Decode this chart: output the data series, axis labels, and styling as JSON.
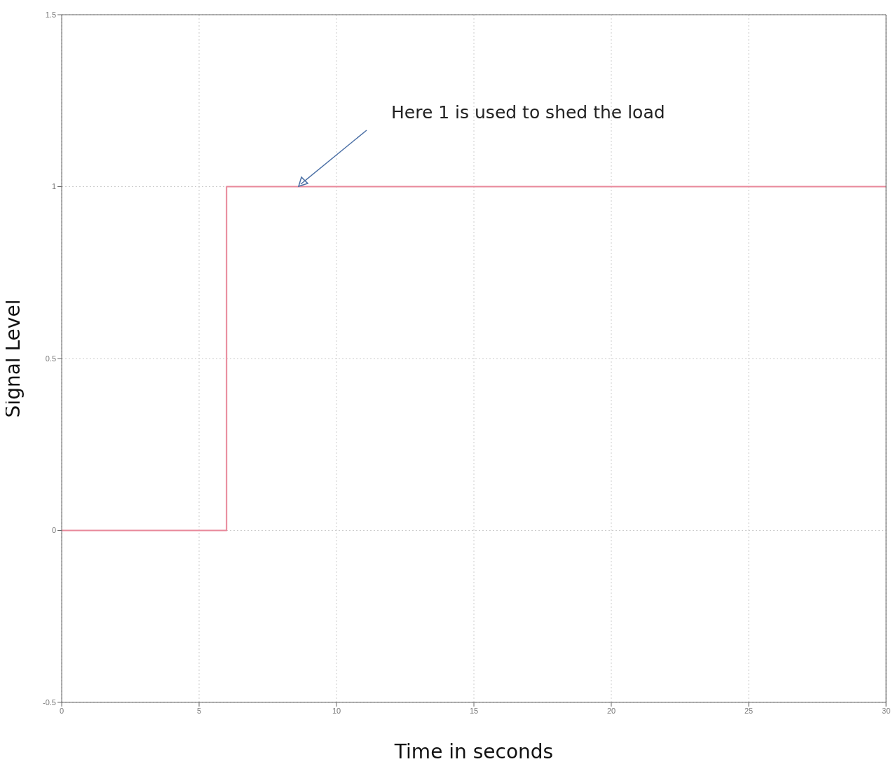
{
  "chart_data": {
    "type": "step",
    "xlabel": "Time in seconds",
    "ylabel": "Signal Level",
    "x": [
      0,
      6,
      30
    ],
    "series": [
      {
        "color": "#e8889a",
        "values": [
          0,
          1,
          1
        ]
      }
    ],
    "xlim": [
      0,
      30
    ],
    "xticks": [
      0,
      5,
      10,
      15,
      20,
      25,
      30
    ],
    "ylim": [
      -0.5,
      1.5
    ],
    "yticks": [
      -0.5,
      0,
      0.5,
      1,
      1.5
    ],
    "grid": true,
    "line_style": "solid",
    "marker": "none",
    "annotations": [
      "Here 1 is used to shed the load"
    ]
  }
}
